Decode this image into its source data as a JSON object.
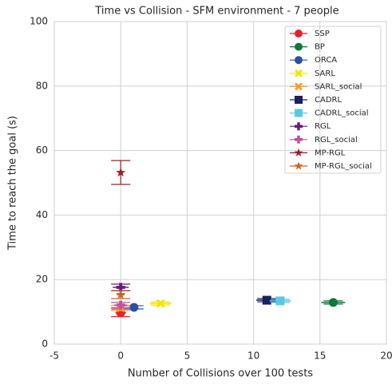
{
  "chart_data": {
    "type": "scatter",
    "title": "Time vs Collision - SFM environment - 7 people",
    "x_label": "Number of Collisions over 100 tests",
    "y_label": "Time to reach the goal (s)",
    "xlim": [
      -5,
      20
    ],
    "xticks": [
      -5,
      0,
      5,
      10,
      15,
      20
    ],
    "ylim": [
      0,
      100
    ],
    "yticks": [
      0,
      20,
      40,
      60,
      80,
      100
    ],
    "grid": true,
    "legend": "upper right",
    "series": [
      {
        "name": "SSP",
        "color": "#e8202a",
        "marker": "circle",
        "x": 0,
        "y": 9.7,
        "yerr": 1.2,
        "xerr": 0.4
      },
      {
        "name": "BP",
        "color": "#0b7a3b",
        "marker": "circle",
        "x": 16,
        "y": 12.9,
        "yerr": 0.5,
        "xerr": 0.9
      },
      {
        "name": "ORCA",
        "color": "#2c50a0",
        "marker": "circle",
        "x": 1,
        "y": 11.4,
        "yerr": 0.5,
        "xerr": 0.3
      },
      {
        "name": "SARL",
        "color": "#f0e400",
        "marker": "x",
        "x": 3,
        "y": 12.6,
        "yerr": 0.5,
        "xerr": 0.8
      },
      {
        "name": "SARL_social",
        "color": "#f5a020",
        "marker": "x",
        "x": 0,
        "y": 11.2,
        "yerr": 0.8,
        "xerr": 0.3
      },
      {
        "name": "CADRL",
        "color": "#1a1f5e",
        "marker": "square",
        "x": 11,
        "y": 13.6,
        "yerr": 0.5,
        "xerr": 0.8
      },
      {
        "name": "CADRL_social",
        "color": "#5cc8e0",
        "marker": "square",
        "x": 12,
        "y": 13.4,
        "yerr": 0.5,
        "xerr": 0.8
      },
      {
        "name": "RGL",
        "color": "#6a1b7a",
        "marker": "plus",
        "x": 0,
        "y": 17.6,
        "yerr": 1.0,
        "xerr": 0.6
      },
      {
        "name": "RGL_social",
        "color": "#c050a0",
        "marker": "plus",
        "x": 0,
        "y": 12.1,
        "yerr": 0.8,
        "xerr": 0.5
      },
      {
        "name": "MP-RGL",
        "color": "#a01c24",
        "marker": "star",
        "x": 0,
        "y": 53.2,
        "yerr": 3.7,
        "xerr": 0
      },
      {
        "name": "MP-RGL_social",
        "color": "#d06020",
        "marker": "star",
        "x": 0,
        "y": 15.3,
        "yerr": 1.2,
        "xerr": 0.3
      }
    ]
  }
}
